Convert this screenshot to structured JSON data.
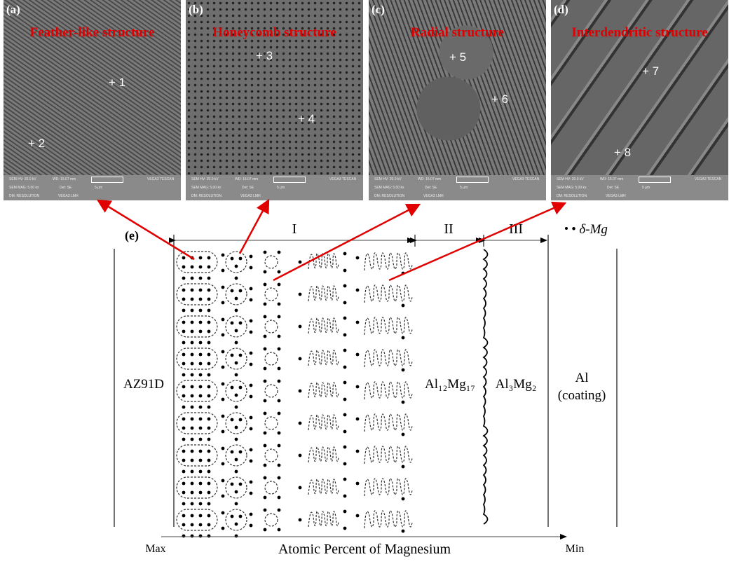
{
  "panels": [
    {
      "label": "(a)",
      "title": "Feather-like structure",
      "points": [
        "+ 1",
        "+ 2"
      ]
    },
    {
      "label": "(b)",
      "title": "Honeycomb structure",
      "points": [
        "+ 3",
        "+ 4"
      ]
    },
    {
      "label": "(c)",
      "title": "Radial structure",
      "points": [
        "+ 5",
        "+ 6"
      ]
    },
    {
      "label": "(d)",
      "title": "Interdendritic structure",
      "points": [
        "+ 7",
        "+ 8"
      ]
    }
  ],
  "sem_bar": {
    "hv": "SEM HV: 20.0 kV",
    "wd": "WD: 15.07 mm",
    "mag": "SEM MAG: 5.00 kx",
    "det": "Det: SE",
    "mode": "DM: RESOLUTION",
    "model": "VEGA3 LMH",
    "scale": "5 μm",
    "brand": "VEGA3 TESCAN"
  },
  "diagram": {
    "label": "(e)",
    "zones": [
      "I",
      "II",
      "III"
    ],
    "legend": "• δ-Mg",
    "left_material": "AZ91D",
    "zone2_phase": "Al₁₂Mg₁₇",
    "zone3_phase": "Al₃Mg₂",
    "right_material": [
      "Al",
      "(coating)"
    ],
    "axis": {
      "min_label": "Max",
      "max_label": "Min",
      "title": "Atomic Percent of Magnesium"
    }
  },
  "colors": {
    "arrow": "#e00000",
    "title": "#e00000"
  }
}
